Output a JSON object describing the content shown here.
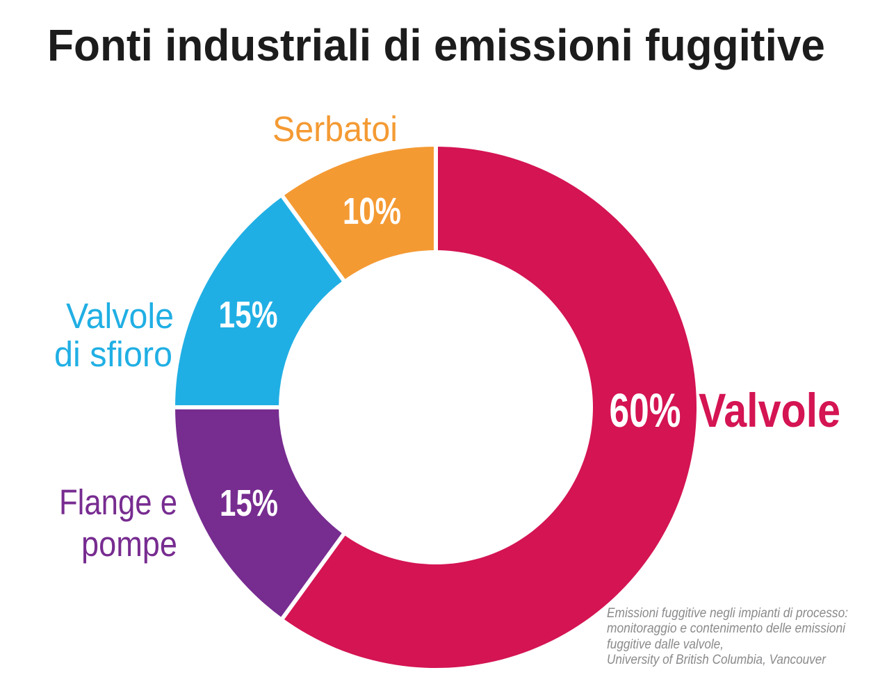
{
  "title": "Fonti industriali di emissioni fuggitive",
  "chart_data": {
    "type": "pie",
    "subtype": "donut",
    "title": "Fonti industriali di emissioni fuggitive",
    "units": "%",
    "direction": "clockwise",
    "start_angle_deg": 0,
    "legend_position": "labels-around-donut",
    "segments": [
      {
        "label": "Valvole",
        "value": 60,
        "display": "60%",
        "color": "#D41453"
      },
      {
        "label": "Flange e pompe",
        "value": 15,
        "display": "15%",
        "color": "#772C90"
      },
      {
        "label": "Valvole di sfioro",
        "value": 15,
        "display": "15%",
        "color": "#20AFE4"
      },
      {
        "label": "Serbatoi",
        "value": 10,
        "display": "10%",
        "color": "#F49A33"
      }
    ],
    "source_note": "Emissioni fuggitive negli impianti di processo: monitoraggio e contenimento delle emissioni fuggitive dalle valvole, University of British Columbia, Vancouver"
  },
  "labels": {
    "serbatoi": "Serbatoi",
    "serbatoi_pct": "10%",
    "sfioro_line1": "Valvole",
    "sfioro_line2": "di sfioro",
    "sfioro_pct": "15%",
    "flange_line1": "Flange e",
    "flange_line2": "pompe",
    "flange_pct": "15%",
    "valvole_pct": "60%",
    "valvole": "Valvole"
  },
  "source_lines": [
    "Emissioni fuggitive negli impianti di processo:",
    "monitoraggio e contenimento delle emissioni",
    "fuggitive dalle valvole,",
    "University of British Columbia, Vancouver"
  ],
  "colors": {
    "valvole_red": "#D41453",
    "flange_purple": "#772C90",
    "sfioro_cyan": "#20AFE4",
    "serbatoi_orange": "#F49A33",
    "title_black": "#1C1C1C",
    "note_gray": "#8A8A8D",
    "background": "#FFFFFF",
    "segment_gap": "#FFFFFF"
  }
}
